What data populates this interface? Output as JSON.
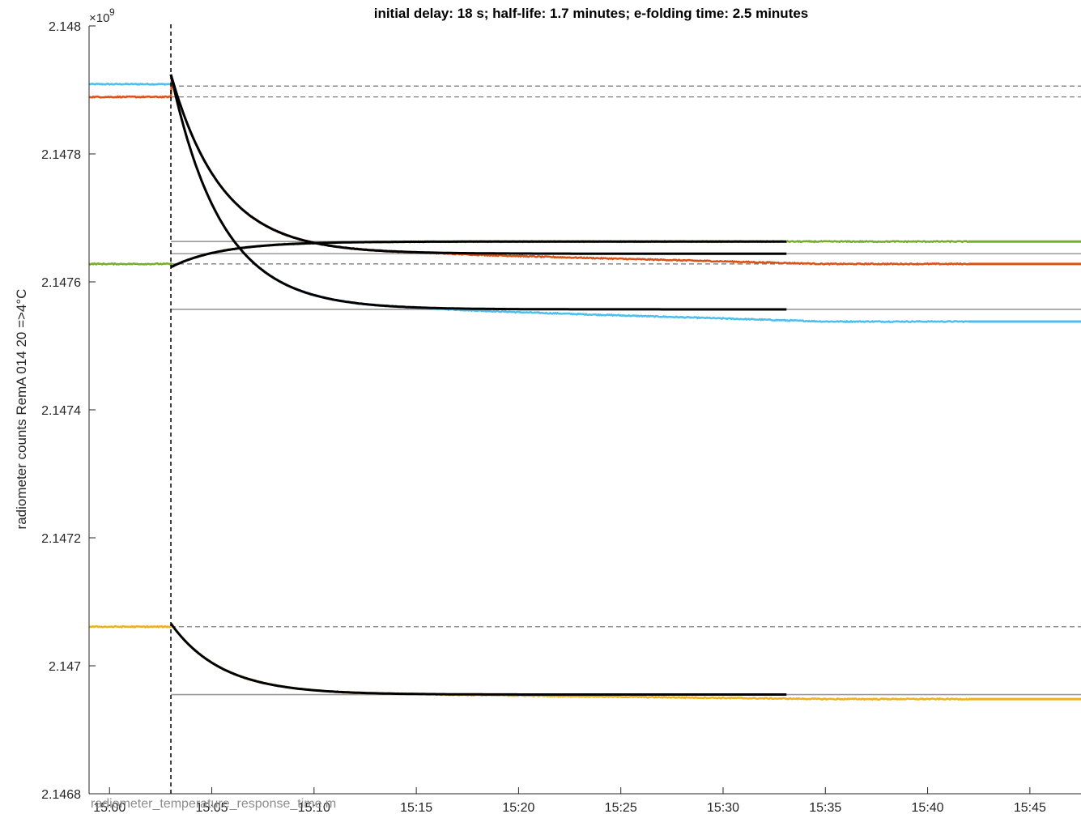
{
  "chart_data": {
    "type": "line",
    "title": "initial delay: 18 s;     half-life: 1.7 minutes;     e-folding time: 2.5 minutes",
    "ylabel": "radiometer counts RemA 014 20 =>4°C",
    "y_exponent_base": "×10",
    "y_exponent_power": "9",
    "footer_text": "radiometer_temperature_response_time.m",
    "xlim_minutes": [
      -1.0,
      47.5
    ],
    "ylim": [
      2.1468,
      2.148
    ],
    "x_ticks": [
      {
        "value": 0,
        "label": "15:00"
      },
      {
        "value": 5,
        "label": "15:05"
      },
      {
        "value": 10,
        "label": "15:10"
      },
      {
        "value": 15,
        "label": "15:15"
      },
      {
        "value": 20,
        "label": "15:20"
      },
      {
        "value": 25,
        "label": "15:25"
      },
      {
        "value": 30,
        "label": "15:30"
      },
      {
        "value": 35,
        "label": "15:35"
      },
      {
        "value": 40,
        "label": "15:40"
      },
      {
        "value": 45,
        "label": "15:45"
      }
    ],
    "y_ticks": [
      {
        "value": 2.1468,
        "label": "2.1468"
      },
      {
        "value": 2.147,
        "label": "2.147"
      },
      {
        "value": 2.1472,
        "label": "2.1472"
      },
      {
        "value": 2.1474,
        "label": "2.1474"
      },
      {
        "value": 2.1476,
        "label": "2.1476"
      },
      {
        "value": 2.1478,
        "label": "2.1478"
      },
      {
        "value": 2.148,
        "label": "2.148"
      }
    ],
    "step_time_minutes": 3.0,
    "fit_end_minutes": 33.2,
    "data_end_minutes": 42.0,
    "e_folding_minutes": 2.5,
    "series": [
      {
        "color": "#4DBEEE",
        "initial": 2.147909,
        "peak": 2.147924,
        "final": 2.147557,
        "late_final": 2.147538,
        "reference_before": 2.147906,
        "reference_after": 2.147557
      },
      {
        "color": "#D95319",
        "initial": 2.147889,
        "peak": 2.147924,
        "final": 2.147644,
        "late_final": 2.147628,
        "reference_before": 2.147889,
        "reference_after": 2.147644
      },
      {
        "color": "#77AC30",
        "initial": 2.147628,
        "peak": 2.147623,
        "final": 2.147663,
        "late_final": 2.147663,
        "reference_before": 2.147628,
        "reference_after": 2.147663
      },
      {
        "color": "#EDB120",
        "initial": 2.147061,
        "peak": 2.147066,
        "final": 2.146955,
        "late_final": 2.146948,
        "reference_before": 2.147061,
        "reference_after": 2.146955
      }
    ]
  }
}
